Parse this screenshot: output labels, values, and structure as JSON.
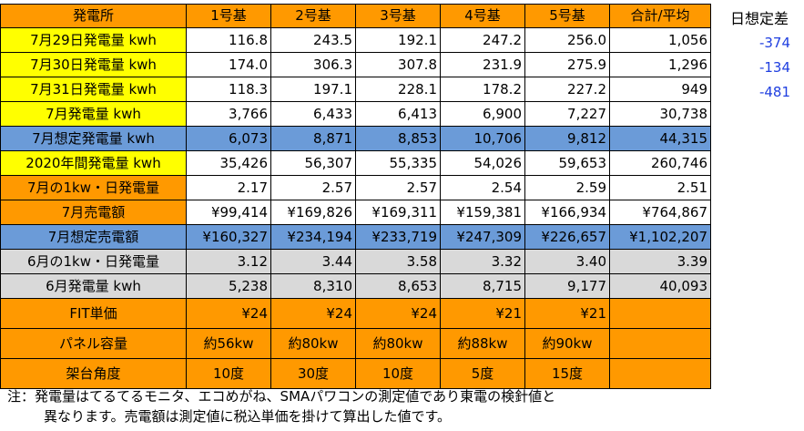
{
  "header": [
    "発電所",
    "1号基",
    "2号基",
    "3号基",
    "4号基",
    "5号基",
    "合計/平均"
  ],
  "rows": [
    {
      "label": "7月29日発電量 kwh",
      "values": [
        "116.8",
        "243.5",
        "192.1",
        "247.2",
        "256.0",
        "1,056"
      ]
    },
    {
      "label": "7月30日発電量 kwh",
      "values": [
        "174.0",
        "306.3",
        "307.8",
        "231.9",
        "275.9",
        "1,296"
      ]
    },
    {
      "label": "7月31日発電量 kwh",
      "values": [
        "118.3",
        "197.1",
        "228.1",
        "178.2",
        "227.2",
        "949"
      ]
    },
    {
      "label": "7月発電量 kwh",
      "values": [
        "3,766",
        "6,433",
        "6,413",
        "6,900",
        "7,227",
        "30,738"
      ]
    },
    {
      "label": "7月想定発電量 kwh",
      "values": [
        "6,073",
        "8,871",
        "8,853",
        "10,706",
        "9,812",
        "44,315"
      ]
    },
    {
      "label": "2020年間発電量 kwh",
      "values": [
        "35,426",
        "56,307",
        "55,335",
        "54,026",
        "59,653",
        "260,746"
      ]
    },
    {
      "label": "7月の1kw・日発電量",
      "values": [
        "2.17",
        "2.57",
        "2.57",
        "2.54",
        "2.59",
        "2.51"
      ]
    },
    {
      "label": "7月売電額",
      "values": [
        "¥99,414",
        "¥169,826",
        "¥169,311",
        "¥159,381",
        "¥166,934",
        "¥764,867"
      ]
    },
    {
      "label": "7月想定売電額",
      "values": [
        "¥160,327",
        "¥234,194",
        "¥233,719",
        "¥247,309",
        "¥226,657",
        "¥1,102,207"
      ]
    },
    {
      "label": "6月の1kw・日発電量",
      "values": [
        "3.12",
        "3.44",
        "3.58",
        "3.32",
        "3.40",
        "3.39"
      ]
    },
    {
      "label": "6月発電量 kwh",
      "values": [
        "5,238",
        "8,310",
        "8,653",
        "8,715",
        "9,177",
        "40,093"
      ]
    },
    {
      "label": "FIT単価",
      "values": [
        "¥24",
        "¥24",
        "¥24",
        "¥21",
        "¥21",
        ""
      ]
    },
    {
      "label": "パネル容量",
      "values": [
        "約56kw",
        "約80kw",
        "約80kw",
        "約88kw",
        "約90kw",
        ""
      ]
    },
    {
      "label": "架台角度",
      "values": [
        "10度",
        "30度",
        "10度",
        "5度",
        "15度",
        ""
      ]
    }
  ],
  "diff": {
    "header": "日想定差",
    "values": [
      "-374",
      "-134",
      "-481"
    ]
  },
  "note": {
    "line1": "注：発電量はてるてるモニタ、エコめがね、SMAパワコンの測定値であり東電の検針値と",
    "line2": "異なります。売電額は測定値に税込単価を掛けて算出した値です。"
  },
  "colors": {
    "orange": "#ff9900",
    "yellow": "#ffff00",
    "blue": "#6b9bd8",
    "gray": "#d9d9d9",
    "diff_text": "#1f3fe0"
  }
}
